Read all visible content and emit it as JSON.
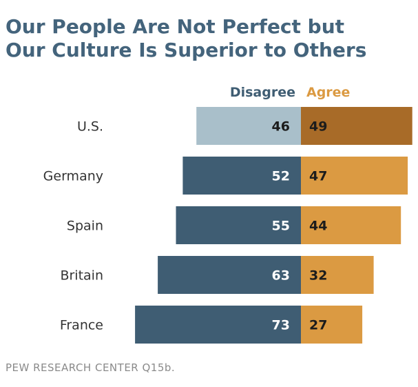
{
  "title_lines": [
    "Our People Are Not Perfect but",
    "Our Culture Is Superior to Others"
  ],
  "source": "PEW RESEARCH CENTER Q15b.",
  "colors": {
    "title": "#44647c",
    "disagree": "#3f5d73",
    "disagree_highlight": "#a9bfca",
    "agree": "#db9a42",
    "agree_highlight": "#a86b28",
    "legend_disagree": "#3f5d73",
    "legend_agree": "#db9a42",
    "label_text": "#333333"
  },
  "chart_data": {
    "type": "bar",
    "orientation": "horizontal-diverging",
    "title": "Our People Are Not Perfect but Our Culture Is Superior to Others",
    "categories": [
      "U.S.",
      "Germany",
      "Spain",
      "Britain",
      "France"
    ],
    "series": [
      {
        "name": "Disagree",
        "values": [
          46,
          52,
          55,
          63,
          73
        ]
      },
      {
        "name": "Agree",
        "values": [
          49,
          47,
          44,
          32,
          27
        ]
      }
    ],
    "highlight_category": "U.S.",
    "legend_placement": "top",
    "grid": false
  }
}
